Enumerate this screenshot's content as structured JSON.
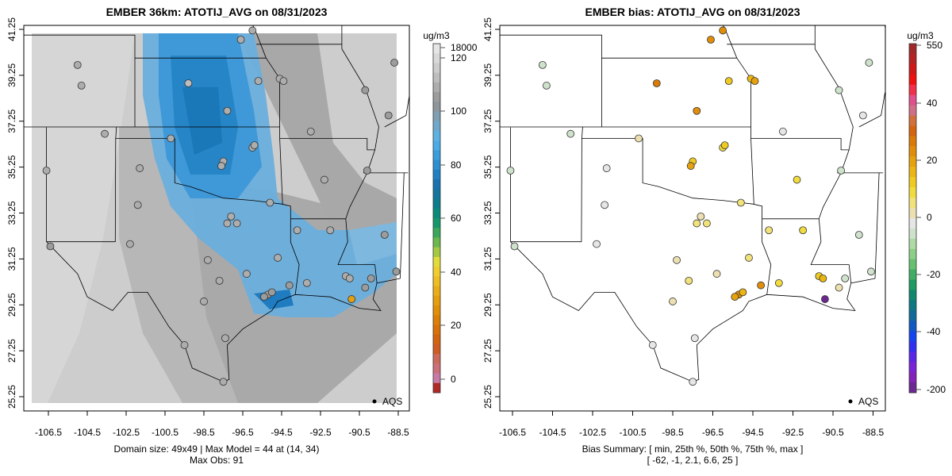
{
  "panels": [
    {
      "title": "EMBER 36km: ATOTIJ_AVG on 08/31/2023",
      "caption_line1": "Domain size: 49x49 | Max Model = 44 at (14, 34)",
      "caption_line2": "Max Obs: 91",
      "legend_label": "AQS",
      "colorbar": {
        "unit": "ug/m3",
        "ticks": [
          "18000",
          "120",
          "100",
          "80",
          "60",
          "40",
          "20",
          "0"
        ],
        "colors": [
          "#e6e6e6",
          "#d9d9d9",
          "#cccccc",
          "#bdbdbd",
          "#adadad",
          "#9c9c9c",
          "#8e959b",
          "#7f9fb3",
          "#6ea8cc",
          "#5db2e2",
          "#4aace6",
          "#3a9ddc",
          "#2b8fd3",
          "#1f80c4",
          "#1873b0",
          "#12769e",
          "#0c7d8c",
          "#0a8a7a",
          "#15976a",
          "#3aa75a",
          "#6bb84c",
          "#a5c943",
          "#e2dc3a",
          "#efcd2e",
          "#eebd22",
          "#eaad17",
          "#e69e0e",
          "#e28f08",
          "#dc7f06",
          "#d77108",
          "#d2640f",
          "#cf5c22",
          "#cc6a5a",
          "#cc6f7a",
          "#c87aa5",
          "#b02828"
        ]
      }
    },
    {
      "title": "EMBER bias: ATOTIJ_AVG on 08/31/2023",
      "caption_line1": "Bias Summary: [ min, 25th %, 50th %, 75th %, max ]",
      "caption_line2": "[ -62,   -1,   2.1,   6.6,   25 ]",
      "legend_label": "AQS",
      "colorbar": {
        "unit": "ug/m3",
        "ticks": [
          "550",
          "40",
          "20",
          "0",
          "-20",
          "-40",
          "-200"
        ],
        "colors": [
          "#a02828",
          "#b52222",
          "#d01818",
          "#ef1010",
          "#f3304a",
          "#e0508a",
          "#d06f88",
          "#d2703c",
          "#d46410",
          "#da7a08",
          "#e08e0a",
          "#e6a20e",
          "#ebb614",
          "#efcb22",
          "#f1dc40",
          "#f2e27a",
          "#ecdfb0",
          "#e6e6e6",
          "#cfe2cc",
          "#aedaa6",
          "#8ccf88",
          "#66c070",
          "#3fad62",
          "#1f9a62",
          "#10876e",
          "#0d7881",
          "#0f6a9a",
          "#1158c2",
          "#1444ee",
          "#3030f0",
          "#5a26e6",
          "#7a22d6",
          "#8222b8",
          "#6a2890"
        ]
      }
    }
  ],
  "axes": {
    "x_ticks": [
      "-106.5",
      "-104.5",
      "-102.5",
      "-100.5",
      "-98.5",
      "-96.5",
      "-94.5",
      "-92.5",
      "-90.5",
      "-88.5"
    ],
    "y_ticks": [
      "41.25",
      "39.25",
      "37.25",
      "35.25",
      "33.25",
      "31.25",
      "29.25",
      "27.25",
      "25.25"
    ]
  },
  "chart_data": {
    "type": "scatter",
    "description_unit": "ug/m3",
    "lon_range": [
      -107.5,
      -88
    ],
    "lat_range": [
      24.9,
      41.6
    ],
    "stations": [
      {
        "lon": -90.9,
        "lat": 29.5,
        "obs": 91,
        "bias": -62
      },
      {
        "lon": -95.2,
        "lat": 29.7,
        "obs": 12,
        "bias": 20
      },
      {
        "lon": -95.0,
        "lat": 29.8,
        "obs": 13,
        "bias": 15
      },
      {
        "lon": -95.4,
        "lat": 29.6,
        "obs": 11,
        "bias": 18
      },
      {
        "lon": -94.1,
        "lat": 30.1,
        "obs": 10,
        "bias": 22
      },
      {
        "lon": -93.2,
        "lat": 30.2,
        "obs": 9,
        "bias": 8
      },
      {
        "lon": -91.2,
        "lat": 30.5,
        "obs": 8,
        "bias": 12
      },
      {
        "lon": -91.0,
        "lat": 30.4,
        "obs": 9,
        "bias": 14
      },
      {
        "lon": -90.2,
        "lat": 30.0,
        "obs": 11,
        "bias": 2
      },
      {
        "lon": -89.9,
        "lat": 30.4,
        "obs": 12,
        "bias": -3
      },
      {
        "lon": -97.5,
        "lat": 35.5,
        "obs": 8,
        "bias": 12
      },
      {
        "lon": -97.6,
        "lat": 35.3,
        "obs": 7,
        "bias": 18
      },
      {
        "lon": -96.0,
        "lat": 36.1,
        "obs": 9,
        "bias": 10
      },
      {
        "lon": -95.9,
        "lat": 36.2,
        "obs": 8,
        "bias": 12
      },
      {
        "lon": -97.3,
        "lat": 32.8,
        "obs": 8,
        "bias": 5
      },
      {
        "lon": -96.8,
        "lat": 32.8,
        "obs": 9,
        "bias": 6
      },
      {
        "lon": -97.1,
        "lat": 33.1,
        "obs": 8,
        "bias": 4
      },
      {
        "lon": -94.6,
        "lat": 39.1,
        "obs": 7,
        "bias": 15
      },
      {
        "lon": -94.4,
        "lat": 39.0,
        "obs": 7,
        "bias": 18
      },
      {
        "lon": -97.3,
        "lat": 37.7,
        "obs": 6,
        "bias": 20
      },
      {
        "lon": -95.7,
        "lat": 39.0,
        "obs": 7,
        "bias": 12
      },
      {
        "lon": -96.6,
        "lat": 40.8,
        "obs": 6,
        "bias": 20
      },
      {
        "lon": -96.0,
        "lat": 41.2,
        "obs": 6,
        "bias": 22
      },
      {
        "lon": -92.3,
        "lat": 34.7,
        "obs": 9,
        "bias": 10
      },
      {
        "lon": -90.2,
        "lat": 38.6,
        "obs": 10,
        "bias": -2
      },
      {
        "lon": -90.1,
        "lat": 35.1,
        "obs": 10,
        "bias": -2
      },
      {
        "lon": -98.5,
        "lat": 29.4,
        "obs": 9,
        "bias": 2
      },
      {
        "lon": -97.7,
        "lat": 30.3,
        "obs": 8,
        "bias": 5
      },
      {
        "lon": -97.4,
        "lat": 27.8,
        "obs": 9,
        "bias": 1
      },
      {
        "lon": -106.4,
        "lat": 31.8,
        "obs": 10,
        "bias": -3
      },
      {
        "lon": -105.0,
        "lat": 39.7,
        "obs": 9,
        "bias": -4
      },
      {
        "lon": -104.8,
        "lat": 38.8,
        "obs": 8,
        "bias": -3
      },
      {
        "lon": -106.6,
        "lat": 35.1,
        "obs": 8,
        "bias": -2
      },
      {
        "lon": -101.8,
        "lat": 35.2,
        "obs": 6,
        "bias": -1
      },
      {
        "lon": -101.9,
        "lat": 33.6,
        "obs": 6,
        "bias": 1
      },
      {
        "lon": -97.5,
        "lat": 25.9,
        "obs": 8,
        "bias": 0
      },
      {
        "lon": -99.5,
        "lat": 27.5,
        "obs": 7,
        "bias": 1
      },
      {
        "lon": -93.7,
        "lat": 32.5,
        "obs": 9,
        "bias": 6
      },
      {
        "lon": -92.0,
        "lat": 32.5,
        "obs": 9,
        "bias": 8
      },
      {
        "lon": -100.2,
        "lat": 36.5,
        "obs": 6,
        "bias": 3
      },
      {
        "lon": -99.3,
        "lat": 38.9,
        "obs": 5,
        "bias": 25
      },
      {
        "lon": -98.3,
        "lat": 31.2,
        "obs": 7,
        "bias": 3
      },
      {
        "lon": -94.7,
        "lat": 31.3,
        "obs": 8,
        "bias": 5
      },
      {
        "lon": -96.3,
        "lat": 30.6,
        "obs": 8,
        "bias": 4
      },
      {
        "lon": -93.0,
        "lat": 36.8,
        "obs": 8,
        "bias": 1
      },
      {
        "lon": -89.2,
        "lat": 32.3,
        "obs": 10,
        "bias": -2
      },
      {
        "lon": -88.6,
        "lat": 30.7,
        "obs": 11,
        "bias": -3
      },
      {
        "lon": -89.0,
        "lat": 37.5,
        "obs": 10,
        "bias": -1
      },
      {
        "lon": -88.7,
        "lat": 39.8,
        "obs": 10,
        "bias": -2
      },
      {
        "lon": -102.3,
        "lat": 31.9,
        "obs": 6,
        "bias": -1
      },
      {
        "lon": -103.6,
        "lat": 36.7,
        "obs": 6,
        "bias": -2
      },
      {
        "lon": -95.1,
        "lat": 33.7,
        "obs": 8,
        "bias": 6
      }
    ]
  }
}
